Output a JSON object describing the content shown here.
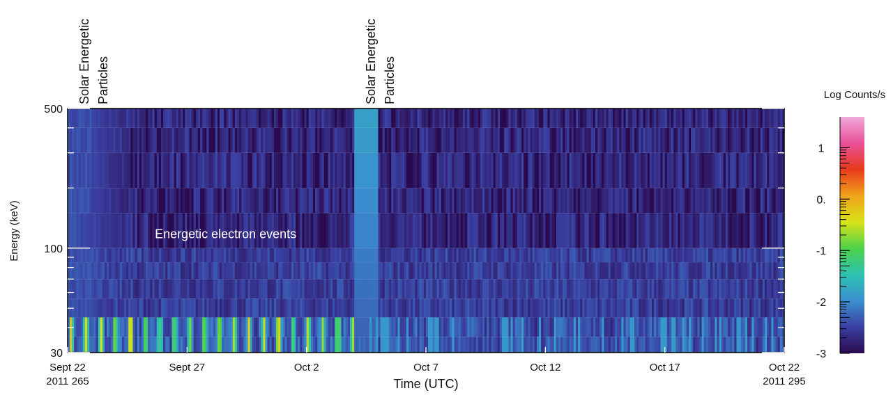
{
  "chart_data": {
    "type": "heatmap",
    "title": "",
    "xlabel": "Time (UTC)",
    "ylabel": "Energy (keV)",
    "xlim": [
      "2011-09-22",
      "2011-10-22"
    ],
    "ylim": [
      30,
      500
    ],
    "y_scale": "log",
    "x_ticks": [
      {
        "date": "2011-09-22",
        "label": "Sept 22",
        "sublabel": "2011 265"
      },
      {
        "date": "2011-09-27",
        "label": "Sept 27",
        "sublabel": ""
      },
      {
        "date": "2011-10-02",
        "label": "Oct 2",
        "sublabel": ""
      },
      {
        "date": "2011-10-07",
        "label": "Oct 7",
        "sublabel": ""
      },
      {
        "date": "2011-10-12",
        "label": "Oct 12",
        "sublabel": ""
      },
      {
        "date": "2011-10-17",
        "label": "Oct 17",
        "sublabel": ""
      },
      {
        "date": "2011-10-22",
        "label": "Oct 22",
        "sublabel": "2011 295"
      }
    ],
    "y_ticks": [
      {
        "value": 500,
        "label": "500"
      },
      {
        "value": 100,
        "label": "100"
      },
      {
        "value": 30,
        "label": "30"
      }
    ],
    "energy_channels_keV": [
      30,
      36,
      45,
      56,
      70,
      85,
      100,
      150,
      200,
      300,
      400,
      500
    ],
    "annotations": [
      {
        "text": "Solar Energetic Particles",
        "date": "2011-09-22",
        "lines": [
          "Solar Energetic",
          "Particles"
        ]
      },
      {
        "text": "Solar Energetic Particles",
        "date": "2011-10-04",
        "lines": [
          "Solar Energetic",
          "Particles"
        ]
      },
      {
        "text": "Energetic electron events",
        "date": "2011-09-26",
        "energy_keV": 105
      }
    ],
    "colorbar": {
      "label": "Log Counts/s",
      "range": [
        -3,
        1.6
      ],
      "ticks": [
        {
          "value": 1,
          "label": "1"
        },
        {
          "value": 0,
          "label": "0."
        },
        {
          "value": -1,
          "label": "-1"
        },
        {
          "value": -2,
          "label": "-2"
        },
        {
          "value": -3,
          "label": "-3"
        }
      ],
      "colors": [
        "#2a0a4e",
        "#3a3fa0",
        "#3a8fd0",
        "#2ec2b0",
        "#4ed24a",
        "#d8e21a",
        "#f0a21a",
        "#e83a1c",
        "#e8509a",
        "#f0a8d8"
      ]
    },
    "features": {
      "sep_event_1": {
        "start": "2011-09-22",
        "end": "2011-09-23",
        "log_counts_min": -2.5,
        "log_counts_max": -2.2
      },
      "sep_event_2": {
        "start": "2011-10-04",
        "end": "2011-10-05",
        "log_counts_min": -2.3,
        "log_counts_max": -1.8
      },
      "electron_event_band_keV": [
        30,
        50
      ],
      "electron_event_peak_log_counts": -0.3,
      "electron_event_period": [
        "2011-09-22",
        "2011-10-04"
      ],
      "background_log_counts": -2.8
    }
  }
}
